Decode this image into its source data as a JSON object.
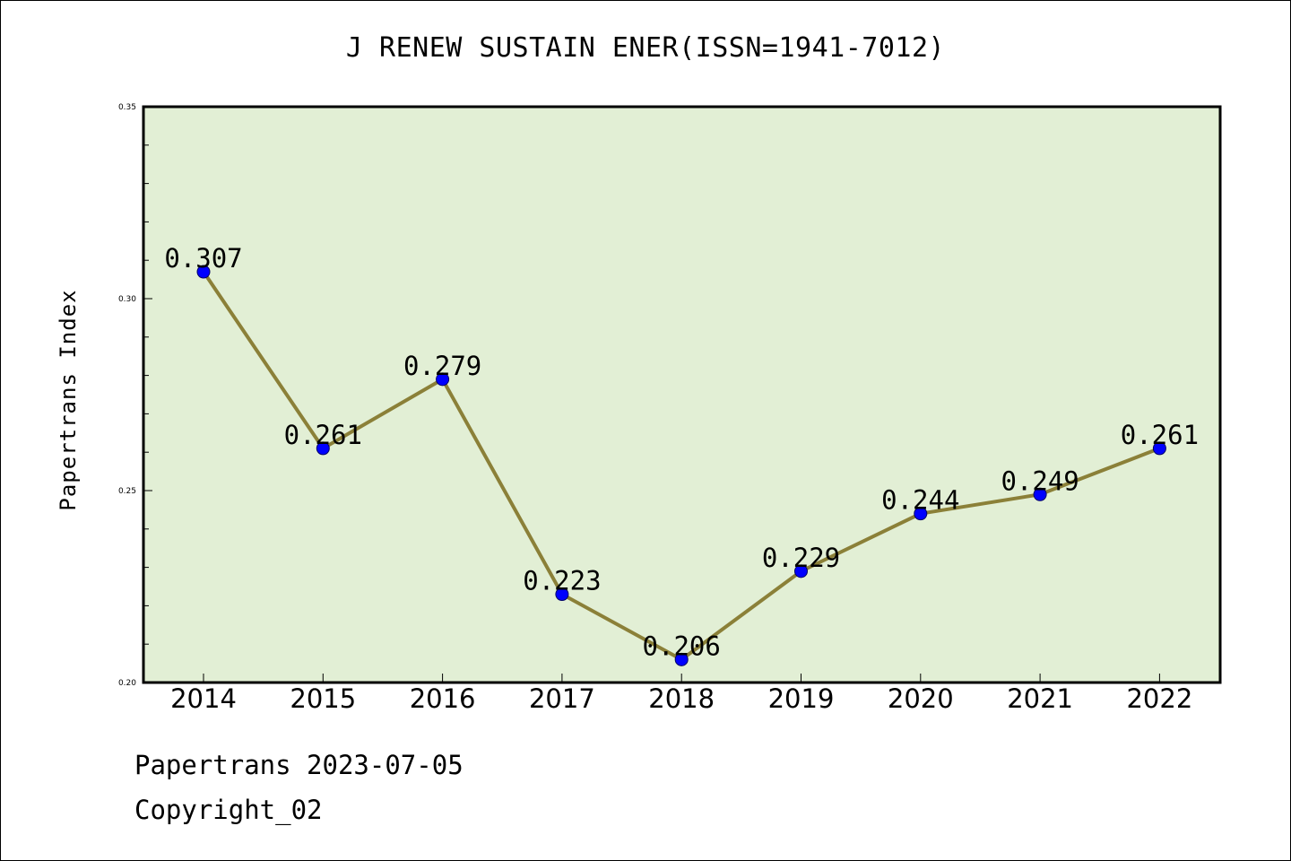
{
  "chart_data": {
    "type": "line",
    "title": "J RENEW SUSTAIN ENER(ISSN=1941-7012)",
    "xlabel": "",
    "ylabel": "Papertrans Index",
    "categories": [
      "2014",
      "2015",
      "2016",
      "2017",
      "2018",
      "2019",
      "2020",
      "2021",
      "2022"
    ],
    "series": [
      {
        "values": [
          0.307,
          0.261,
          0.279,
          0.223,
          0.206,
          0.229,
          0.244,
          0.249,
          0.261
        ],
        "labels": [
          "0.307",
          "0.261",
          "0.279",
          "0.223",
          "0.206",
          "0.229",
          "0.244",
          "0.249",
          "0.261"
        ],
        "line_color": "#8b8038",
        "marker_color": "#0000ff"
      }
    ],
    "ylim": [
      0.2,
      0.35
    ],
    "yticks": [
      "0.20",
      "0.25",
      "0.30",
      "0.35"
    ],
    "plot_background": "#e2efd5",
    "grid": false
  },
  "footer": {
    "date_text": "Papertrans 2023-07-05",
    "copyright_text": "Copyright_02"
  }
}
